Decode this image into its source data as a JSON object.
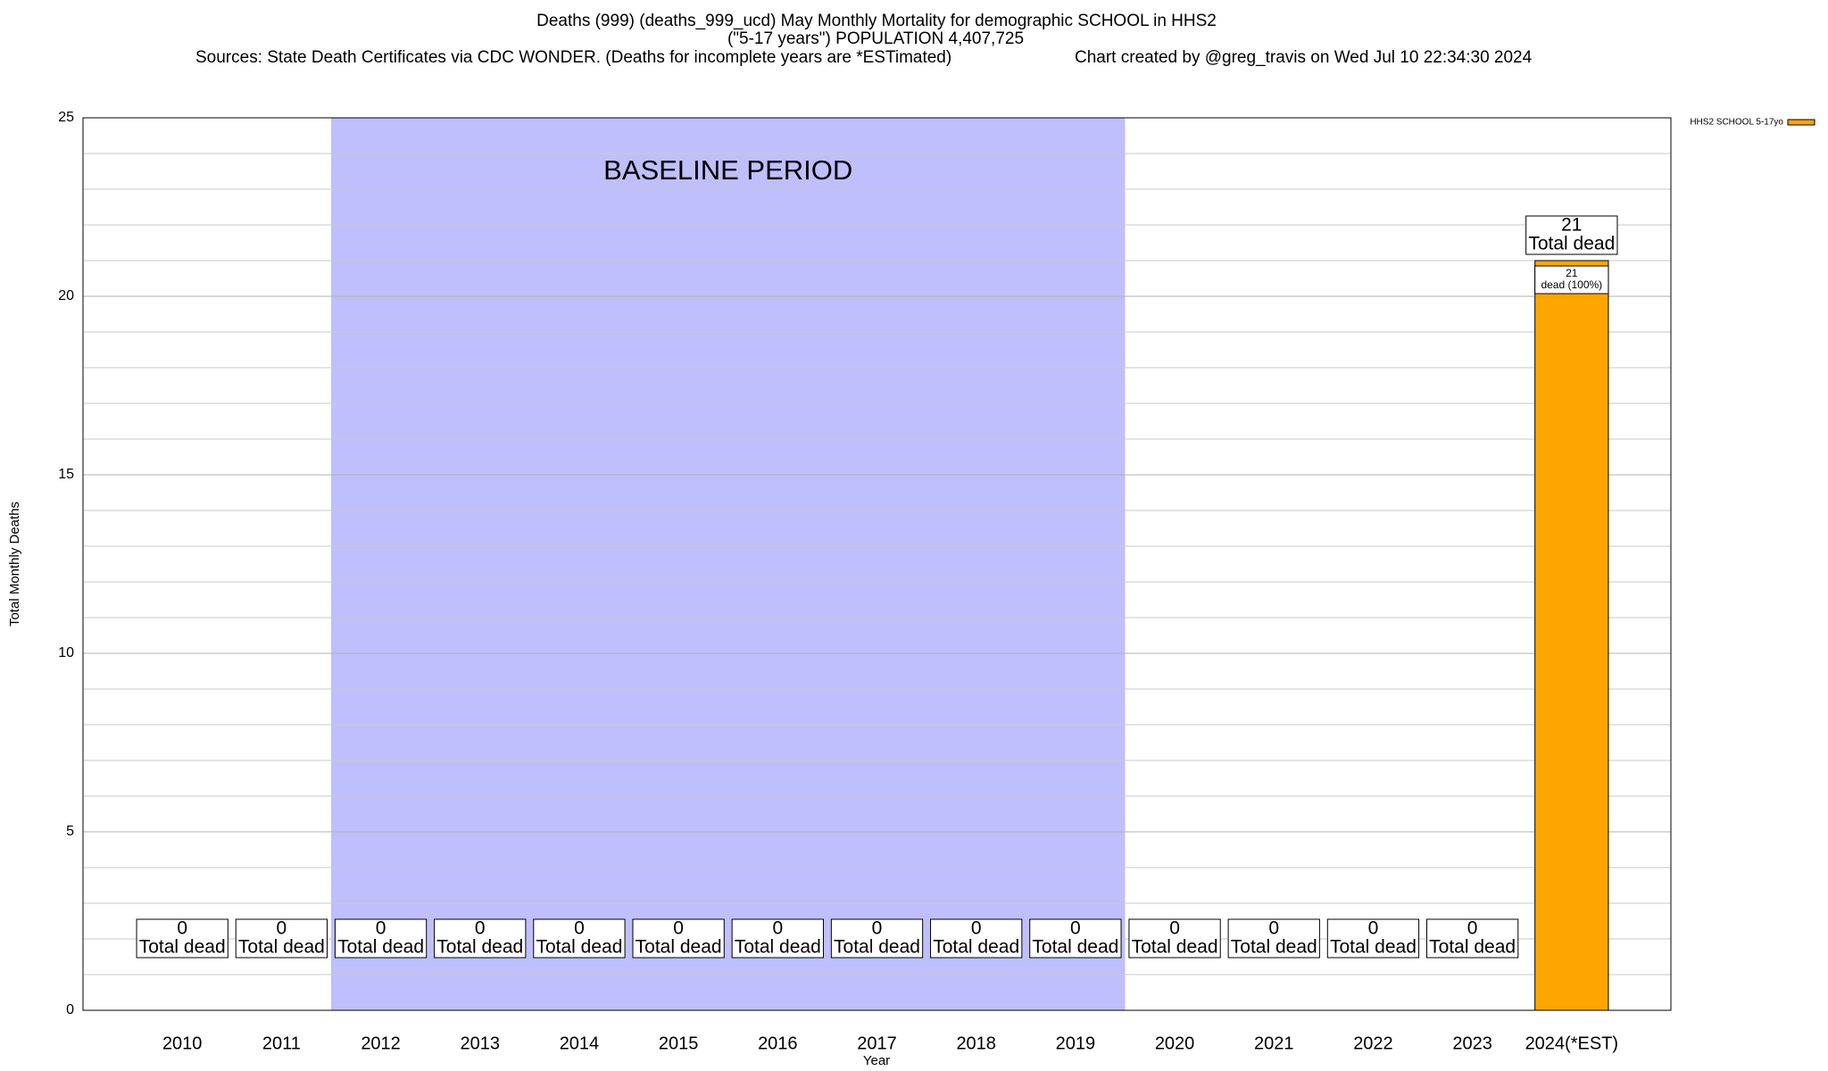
{
  "chart_data": {
    "type": "bar",
    "title": "Deaths (999) (deaths_999_ucd) May Monthly Mortality for demographic SCHOOL in HHS2",
    "subtitle": "(\"5-17 years\") POPULATION 4,407,725",
    "sources": "Sources: State Death Certificates via CDC WONDER. (Deaths for incomplete years are *ESTimated)",
    "credit": "Chart created by @greg_travis on Wed Jul 10 22:34:30 2024",
    "x_label": "Year",
    "y_label": "Total Monthly Deaths",
    "categories": [
      "2010",
      "2011",
      "2012",
      "2013",
      "2014",
      "2015",
      "2016",
      "2017",
      "2018",
      "2019",
      "2020",
      "2021",
      "2022",
      "2023",
      "2024(*EST)"
    ],
    "series": [
      {
        "name": "HHS2 SCHOOL 5-17yo",
        "color": "#ffa500",
        "values": [
          0,
          0,
          0,
          0,
          0,
          0,
          0,
          0,
          0,
          0,
          0,
          0,
          0,
          0,
          21
        ]
      }
    ],
    "total_label": "Total dead",
    "segment_label": "dead (100%)",
    "baseline": {
      "label": "BASELINE PERIOD",
      "from": "2012",
      "to": "2019",
      "color": "#bfbffd"
    },
    "ylim": [
      0,
      25
    ],
    "yticks": [
      0,
      5,
      10,
      15,
      20,
      25
    ],
    "yminor": [
      1,
      2,
      3,
      4,
      6,
      7,
      8,
      9,
      11,
      12,
      13,
      14,
      16,
      17,
      18,
      19,
      21,
      22,
      23,
      24
    ],
    "grid": true,
    "legend": "top-right"
  }
}
